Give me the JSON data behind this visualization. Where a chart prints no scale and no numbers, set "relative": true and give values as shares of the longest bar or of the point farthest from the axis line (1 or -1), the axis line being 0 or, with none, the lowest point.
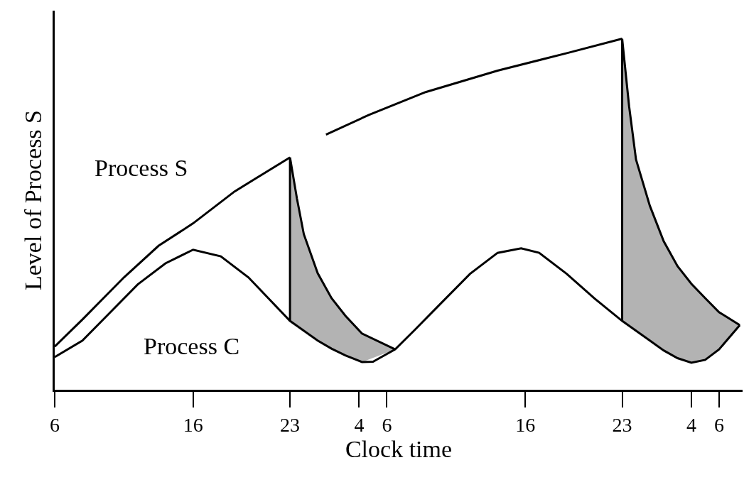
{
  "chart_data": {
    "type": "line",
    "relative": true,
    "xlabel": "Clock time",
    "ylabel": "Level of Process S",
    "marker": "none",
    "line_style": "solid",
    "xlim": [
      "--01-01T06:00",
      "--01-03T07:42"
    ],
    "xticks": [
      {
        "value": "--01-01T06:00",
        "label": "6"
      },
      {
        "value": "--01-01T16:00",
        "label": "16"
      },
      {
        "value": "--01-01T23:00",
        "label": "23"
      },
      {
        "value": "--01-02T04:00",
        "label": "4"
      },
      {
        "value": "--01-02T06:00",
        "label": "6"
      },
      {
        "value": "--01-02T16:00",
        "label": "16"
      },
      {
        "value": "--01-02T23:00",
        "label": "23"
      },
      {
        "value": "--01-03T04:00",
        "label": "4"
      },
      {
        "value": "--01-03T06:00",
        "label": "6"
      }
    ],
    "annotations": [
      "Process S",
      "Process C"
    ],
    "series": [
      {
        "color": "#000000",
        "x": [
          "--01-01T06:00",
          "--01-01T08:00",
          "--01-01T11:00",
          "--01-01T13:30",
          "--01-01T16:00",
          "--01-01T19:00",
          "--01-01T23:00"
        ],
        "values": [
          0.123,
          0.2,
          0.32,
          0.41,
          0.474,
          0.565,
          0.662
        ]
      },
      {
        "color": "#000000",
        "x": [
          "--01-01T23:00",
          "--01-01T23:00",
          "--01-01T23:30",
          "--01-02T00:00",
          "--01-02T01:00",
          "--01-02T02:00",
          "--01-02T03:00",
          "--01-02T04:12",
          "--01-02T06:36"
        ],
        "values": [
          0.196,
          0.662,
          0.545,
          0.443,
          0.332,
          0.261,
          0.211,
          0.16,
          0.115
        ],
        "lower": [
          0.196,
          0.196,
          0.18,
          0.166,
          0.14,
          0.117,
          0.098,
          0.079,
          0.115
        ],
        "upper": [
          0.196,
          0.662,
          0.545,
          0.443,
          0.332,
          0.261,
          0.211,
          0.16,
          0.115
        ]
      },
      {
        "color": "#000000",
        "x": [
          "--01-02T01:36",
          "--01-02T04:42",
          "--01-02T08:48",
          "--01-02T14:00",
          "--01-02T19:06",
          "--01-02T23:00"
        ],
        "values": [
          0.727,
          0.783,
          0.848,
          0.909,
          0.96,
          1.0
        ]
      },
      {
        "color": "#000000",
        "x": [
          "--01-02T23:00",
          "--01-02T23:00",
          "--01-02T23:30",
          "--01-03T00:00",
          "--01-03T01:00",
          "--01-03T02:00",
          "--01-03T03:00",
          "--01-03T04:00",
          "--01-03T05:00",
          "--01-03T06:00",
          "--01-03T07:30"
        ],
        "values": [
          0.196,
          1.0,
          0.808,
          0.656,
          0.524,
          0.423,
          0.352,
          0.302,
          0.261,
          0.221,
          0.184
        ],
        "lower": [
          0.196,
          0.196,
          0.18,
          0.166,
          0.14,
          0.112,
          0.09,
          0.077,
          0.085,
          0.115,
          0.184
        ],
        "upper": [
          0.196,
          1.0,
          0.808,
          0.656,
          0.524,
          0.423,
          0.352,
          0.302,
          0.261,
          0.221,
          0.184
        ]
      },
      {
        "color": "#000000",
        "x": [
          "--01-01T06:00",
          "--01-01T08:00",
          "--01-01T10:00",
          "--01-01T12:00",
          "--01-01T14:00",
          "--01-01T16:00",
          "--01-01T18:00",
          "--01-01T20:00",
          "--01-01T23:00",
          "--01-02T01:00",
          "--01-02T02:00",
          "--01-02T03:00",
          "--01-02T04:12",
          "--01-02T05:00",
          "--01-02T06:36",
          "--01-02T08:00",
          "--01-02T10:00",
          "--01-02T12:00",
          "--01-02T14:00",
          "--01-02T15:42",
          "--01-02T17:00",
          "--01-02T19:00",
          "--01-02T21:00",
          "--01-02T23:00",
          "--01-03T01:00",
          "--01-03T02:00",
          "--01-03T03:00",
          "--01-03T04:00",
          "--01-03T05:00",
          "--01-03T06:00",
          "--01-03T07:30"
        ],
        "values": [
          0.093,
          0.14,
          0.22,
          0.3,
          0.36,
          0.399,
          0.38,
          0.32,
          0.196,
          0.14,
          0.117,
          0.098,
          0.079,
          0.08,
          0.115,
          0.17,
          0.25,
          0.33,
          0.39,
          0.403,
          0.39,
          0.33,
          0.26,
          0.196,
          0.14,
          0.112,
          0.09,
          0.077,
          0.085,
          0.115,
          0.184
        ]
      }
    ]
  }
}
